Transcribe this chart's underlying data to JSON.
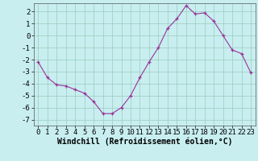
{
  "x": [
    0,
    1,
    2,
    3,
    4,
    5,
    6,
    7,
    8,
    9,
    10,
    11,
    12,
    13,
    14,
    15,
    16,
    17,
    18,
    19,
    20,
    21,
    22,
    23
  ],
  "y": [
    -2.2,
    -3.5,
    -4.1,
    -4.2,
    -4.5,
    -4.8,
    -5.5,
    -6.5,
    -6.5,
    -6.0,
    -5.0,
    -3.5,
    -2.2,
    -1.0,
    0.6,
    1.4,
    2.5,
    1.8,
    1.9,
    1.2,
    0.0,
    -1.2,
    -1.5,
    -3.1
  ],
  "line_color": "#993399",
  "marker_color": "#993399",
  "bg_color": "#c8eef0",
  "grid_color": "#99ccbb",
  "xlabel": "Windchill (Refroidissement éolien,°C)",
  "xlim": [
    -0.5,
    23.5
  ],
  "ylim": [
    -7.5,
    2.7
  ],
  "yticks": [
    -7,
    -6,
    -5,
    -4,
    -3,
    -2,
    -1,
    0,
    1,
    2
  ],
  "xticks": [
    0,
    1,
    2,
    3,
    4,
    5,
    6,
    7,
    8,
    9,
    10,
    11,
    12,
    13,
    14,
    15,
    16,
    17,
    18,
    19,
    20,
    21,
    22,
    23
  ],
  "tick_fontsize": 6.5,
  "xlabel_fontsize": 7.0
}
